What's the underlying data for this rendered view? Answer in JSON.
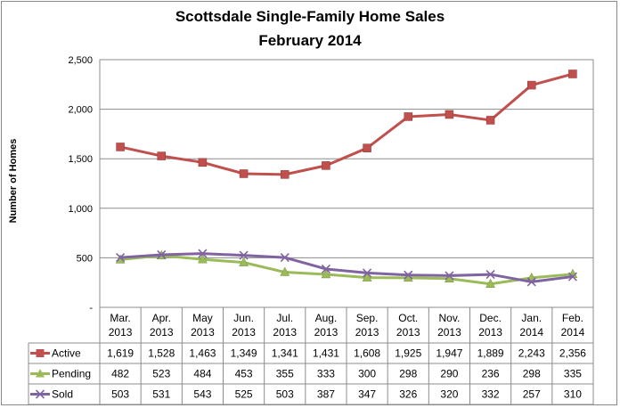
{
  "chart_data": {
    "type": "line",
    "title": "Scottsdale Single-Family  Home Sales",
    "subtitle": "February 2014",
    "ylabel": "Number of Homes",
    "xlabel": "",
    "ylim": [
      0,
      2500
    ],
    "yticks": [
      0,
      500,
      1000,
      1500,
      2000,
      2500
    ],
    "ytick_labels": [
      "-",
      "500",
      "1,000",
      "1,500",
      "2,000",
      "2,500"
    ],
    "grid": "horizontal",
    "legend": "data-table-left",
    "categories": [
      [
        "Mar.",
        "2013"
      ],
      [
        "Apr.",
        "2013"
      ],
      [
        "May",
        "2013"
      ],
      [
        "Jun.",
        "2013"
      ],
      [
        "Jul.",
        "2013"
      ],
      [
        "Aug.",
        "2013"
      ],
      [
        "Sep.",
        "2013"
      ],
      [
        "Oct.",
        "2013"
      ],
      [
        "Nov.",
        "2013"
      ],
      [
        "Dec.",
        "2013"
      ],
      [
        "Jan.",
        "2014"
      ],
      [
        "Feb.",
        "2014"
      ]
    ],
    "series": [
      {
        "name": "Active",
        "color": "#c0504d",
        "marker": "square",
        "values": [
          1619,
          1528,
          1463,
          1349,
          1341,
          1431,
          1608,
          1925,
          1947,
          1889,
          2243,
          2356
        ],
        "labels": [
          "1,619",
          "1,528",
          "1,463",
          "1,349",
          "1,341",
          "1,431",
          "1,608",
          "1,925",
          "1,947",
          "1,889",
          "2,243",
          "2,356"
        ]
      },
      {
        "name": "Pending",
        "color": "#9bbb59",
        "marker": "triangle",
        "values": [
          482,
          523,
          484,
          453,
          355,
          333,
          300,
          298,
          290,
          236,
          298,
          335
        ],
        "labels": [
          "482",
          "523",
          "484",
          "453",
          "355",
          "333",
          "300",
          "298",
          "290",
          "236",
          "298",
          "335"
        ]
      },
      {
        "name": "Sold",
        "color": "#8064a2",
        "marker": "x",
        "values": [
          503,
          531,
          543,
          525,
          503,
          387,
          347,
          326,
          320,
          332,
          257,
          310
        ],
        "labels": [
          "503",
          "531",
          "543",
          "525",
          "503",
          "387",
          "347",
          "326",
          "320",
          "332",
          "257",
          "310"
        ]
      }
    ]
  }
}
